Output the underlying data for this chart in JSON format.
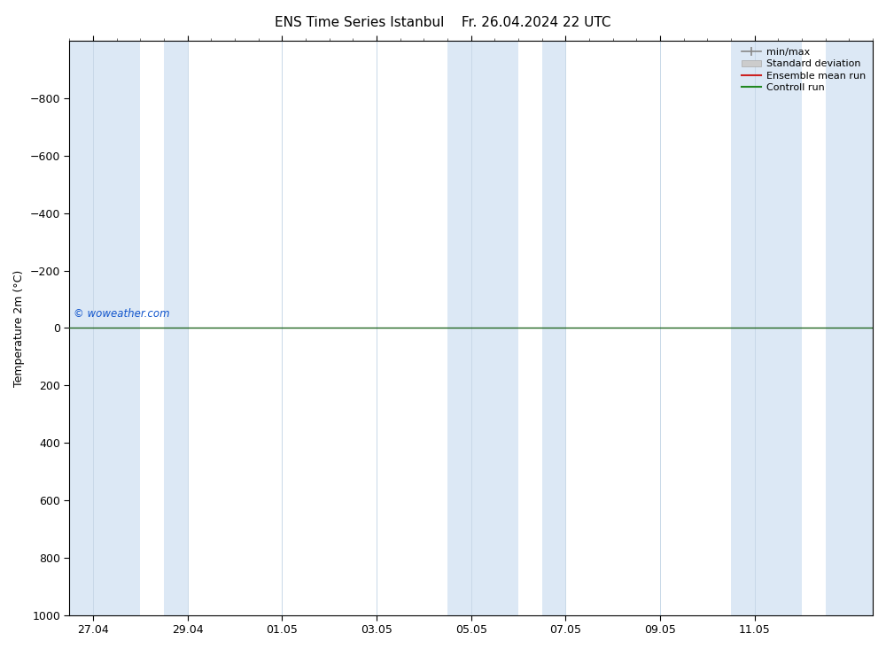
{
  "title_left": "ENS Time Series Istanbul",
  "title_right": "Fr. 26.04.2024 22 UTC",
  "ylabel": "Temperature 2m (°C)",
  "ylim_bottom": 1000,
  "ylim_top": -1000,
  "yticks": [
    -800,
    -600,
    -400,
    -200,
    0,
    200,
    400,
    600,
    800,
    1000
  ],
  "xtick_labels": [
    "27.04",
    "29.04",
    "01.05",
    "03.05",
    "05.05",
    "07.05",
    "09.05",
    "11.05"
  ],
  "xtick_positions": [
    0,
    2,
    4,
    6,
    8,
    10,
    12,
    14
  ],
  "background_color": "#ffffff",
  "plot_bg_color": "#ffffff",
  "shaded_bands": [
    {
      "x_start": -0.5,
      "x_end": 1.0,
      "color": "#dce8f5"
    },
    {
      "x_start": 1.5,
      "x_end": 2.0,
      "color": "#dce8f5"
    },
    {
      "x_start": 7.5,
      "x_end": 9.0,
      "color": "#dce8f5"
    },
    {
      "x_start": 9.5,
      "x_end": 10.0,
      "color": "#dce8f5"
    },
    {
      "x_start": 13.5,
      "x_end": 15.0,
      "color": "#dce8f5"
    },
    {
      "x_start": 15.5,
      "x_end": 16.5,
      "color": "#dce8f5"
    }
  ],
  "legend_items": [
    {
      "label": "min/max",
      "type": "bracket",
      "color": "#888888"
    },
    {
      "label": "Standard deviation",
      "type": "patch",
      "color": "#cccccc"
    },
    {
      "label": "Ensemble mean run",
      "type": "line",
      "color": "#cc2222"
    },
    {
      "label": "Controll run",
      "type": "line",
      "color": "#228822"
    }
  ],
  "watermark": "© woweather.com",
  "watermark_color": "#1155cc",
  "title_fontsize": 11,
  "tick_fontsize": 9,
  "ylabel_fontsize": 9,
  "legend_fontsize": 8,
  "zero_line_color": "#226622",
  "zero_line_lw": 1.0,
  "vgrid_color": "#c8d8e8",
  "vgrid_lw": 0.7,
  "num_days": 16,
  "xlim": [
    -0.5,
    16.5
  ]
}
